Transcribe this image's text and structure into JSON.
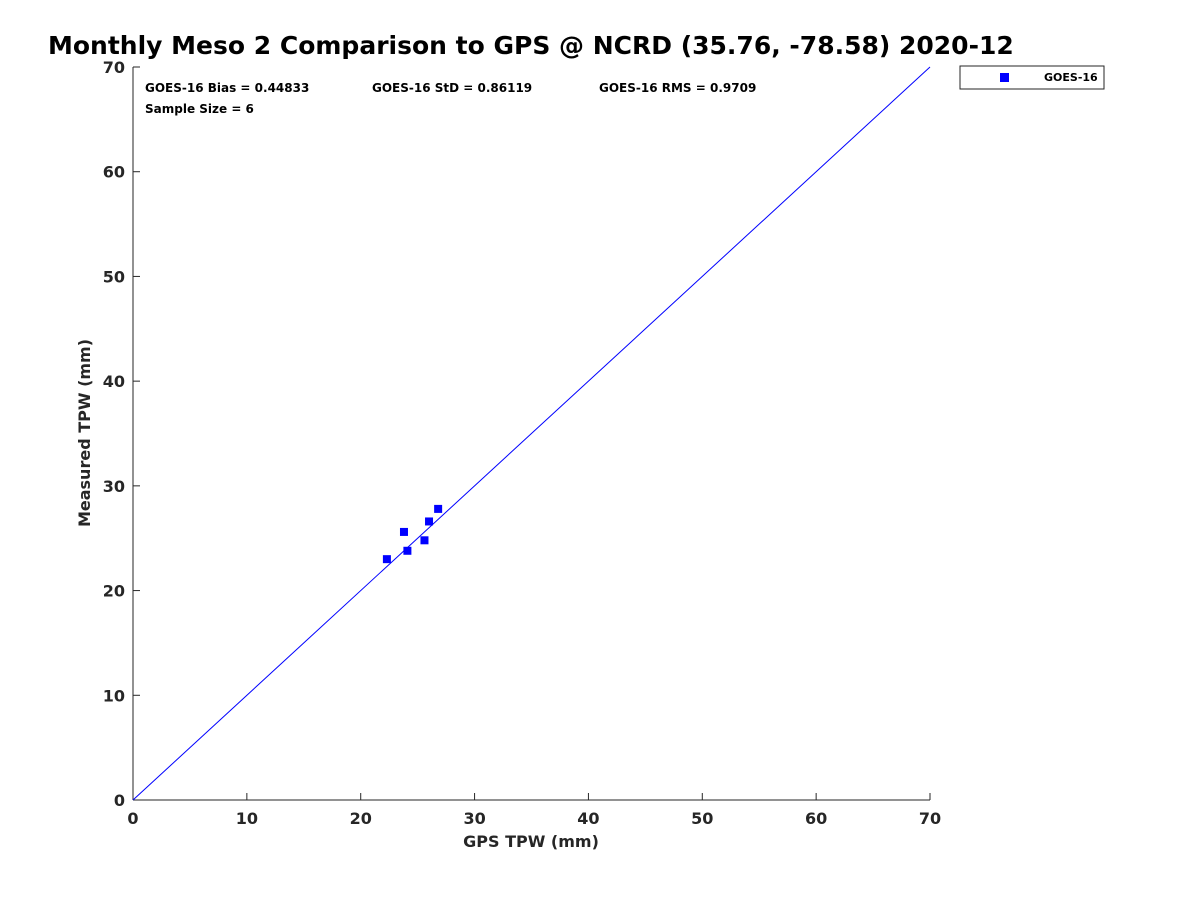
{
  "chart_data": {
    "type": "scatter",
    "title": "Monthly Meso 2 Comparison to GPS @ NCRD (35.76, -78.58) 2020-12",
    "xlabel": "GPS TPW (mm)",
    "ylabel": "Measured TPW (mm)",
    "xlim": [
      0,
      70
    ],
    "ylim": [
      0,
      70
    ],
    "x_ticks": [
      0,
      10,
      20,
      30,
      40,
      50,
      60,
      70
    ],
    "y_ticks": [
      0,
      10,
      20,
      30,
      40,
      50,
      60,
      70
    ],
    "grid": false,
    "legend_position": "top-right, outside plot",
    "series": [
      {
        "name": "GOES-16",
        "marker": "square",
        "color": "#0000ff",
        "points": [
          {
            "x": 22.3,
            "y": 23.0
          },
          {
            "x": 23.8,
            "y": 25.6
          },
          {
            "x": 24.1,
            "y": 23.8
          },
          {
            "x": 25.6,
            "y": 24.8
          },
          {
            "x": 26.0,
            "y": 26.6
          },
          {
            "x": 26.8,
            "y": 27.8
          }
        ]
      }
    ],
    "reference_line": {
      "from": [
        0,
        0
      ],
      "to": [
        70,
        70
      ],
      "color": "#0000ff"
    },
    "stats": {
      "bias": "GOES-16 Bias = 0.44833",
      "std": "GOES-16 StD = 0.86119",
      "rms": "GOES-16 RMS = 0.9709",
      "sample_size": "Sample Size = 6"
    }
  }
}
